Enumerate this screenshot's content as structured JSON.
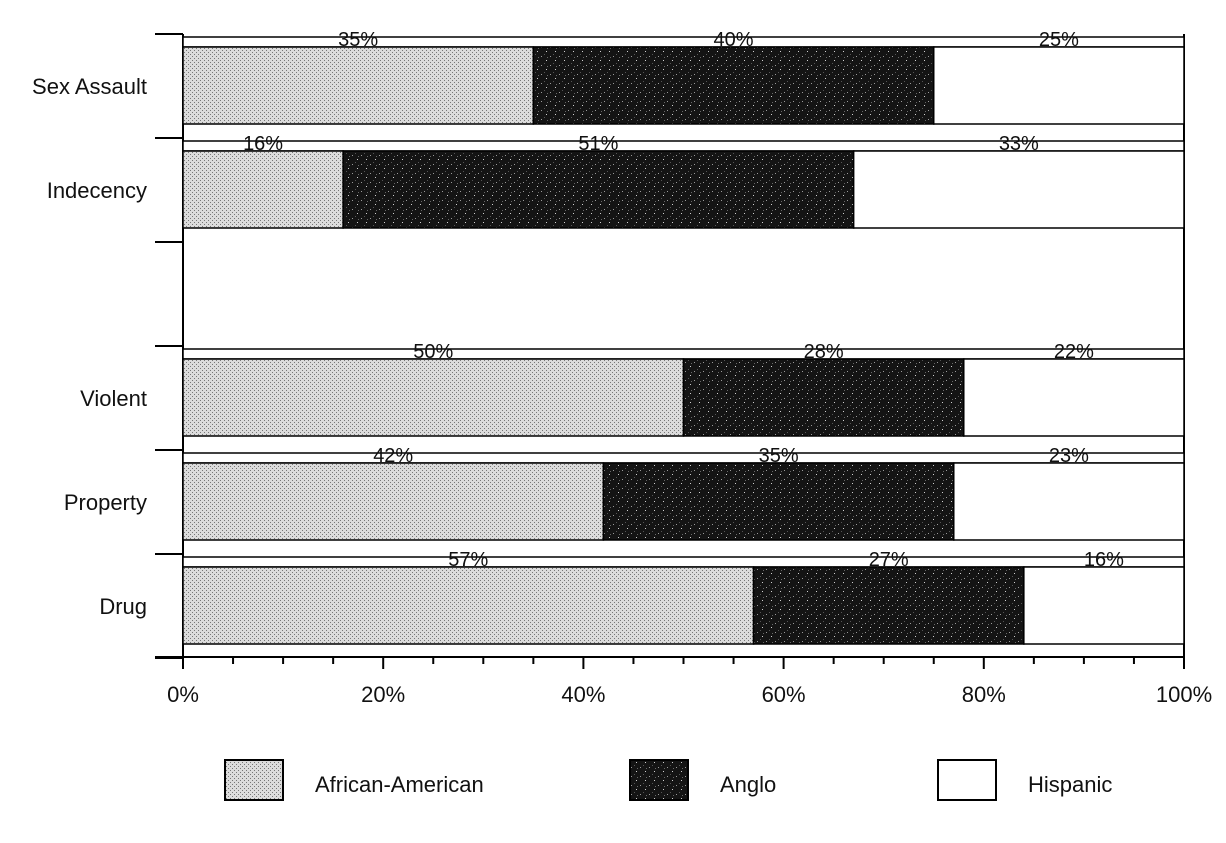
{
  "chart_data": {
    "type": "bar",
    "orientation": "horizontal",
    "stacked": true,
    "categories": [
      "Sex Assault",
      "Indecency",
      "",
      "Violent",
      "Property",
      "Drug"
    ],
    "series": [
      {
        "name": "African-American",
        "values": [
          35,
          16,
          null,
          50,
          42,
          57
        ],
        "color": "#c8c8c8",
        "pattern": "stipple-light"
      },
      {
        "name": "Anglo",
        "values": [
          40,
          51,
          null,
          28,
          35,
          27
        ],
        "color": "#1a1a1a",
        "pattern": "speckled-dark"
      },
      {
        "name": "Hispanic",
        "values": [
          25,
          33,
          null,
          22,
          23,
          16
        ],
        "color": "#ffffff",
        "pattern": "none"
      }
    ],
    "value_labels": [
      [
        "35%",
        "40%",
        "25%"
      ],
      [
        "16%",
        "51%",
        "33%"
      ],
      null,
      [
        "50%",
        "28%",
        "22%"
      ],
      [
        "42%",
        "35%",
        "23%"
      ],
      [
        "57%",
        "27%",
        "16%"
      ]
    ],
    "x_ticks": [
      "0%",
      "20%",
      "40%",
      "60%",
      "80%",
      "100%"
    ],
    "xlim": [
      0,
      100
    ],
    "xlabel": "",
    "ylabel": "",
    "title": "",
    "grid": false,
    "legend": {
      "position": "bottom"
    }
  }
}
